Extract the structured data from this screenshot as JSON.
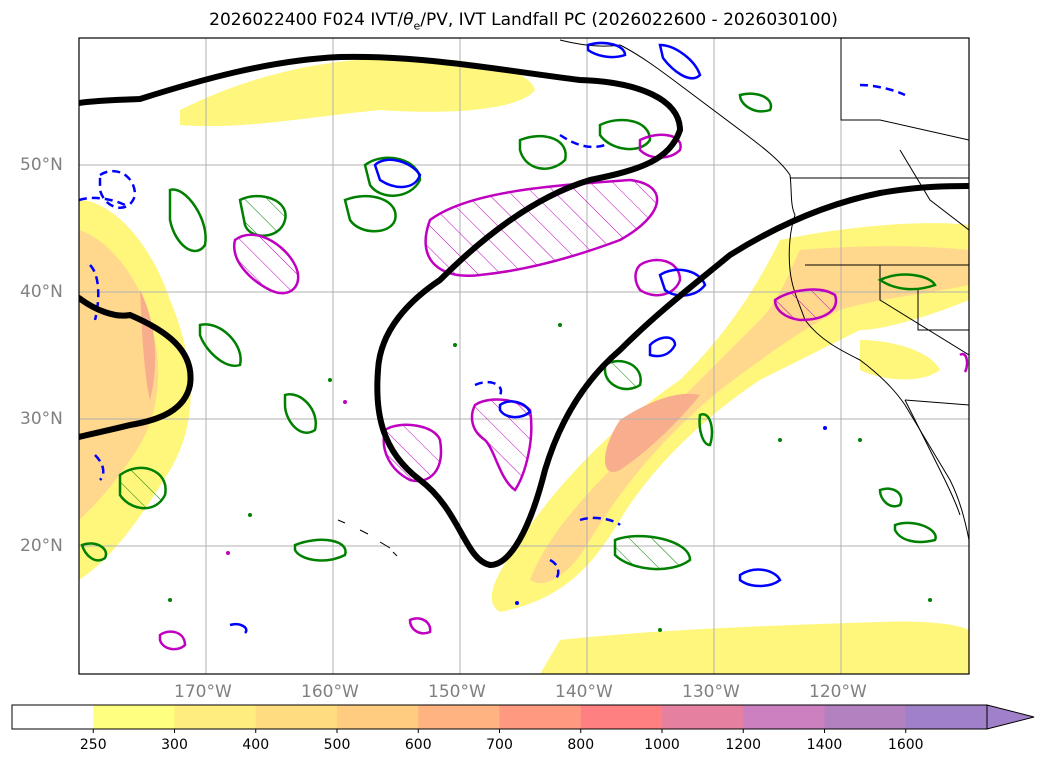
{
  "title": {
    "prefix": "2026022400 F024 IVT/",
    "theta": "θ",
    "theta_sub": "e",
    "suffix": "/PV, IVT Landfall PC (2026022600 - 2026030100)"
  },
  "axes": {
    "lat_labels": [
      "50°N",
      "40°N",
      "30°N",
      "20°N"
    ],
    "lon_labels": [
      "170°W",
      "160°W",
      "150°W",
      "140°W",
      "130°W",
      "120°W"
    ]
  },
  "colorbar": {
    "ticks": [
      "250",
      "300",
      "400",
      "500",
      "600",
      "700",
      "800",
      "1000",
      "1200",
      "1400",
      "1600"
    ],
    "colors": [
      "#ffffff",
      "#ffff80",
      "#ffed80",
      "#ffdc80",
      "#ffcc80",
      "#ffb380",
      "#ff9a80",
      "#ff8080",
      "#e680a0",
      "#cc80c0",
      "#b380c0",
      "#a080c8"
    ]
  },
  "colors": {
    "ivt_fill_light": "#fff566",
    "ivt_fill_mid": "#ffd27a",
    "ivt_fill_dark": "#f7a07a",
    "pc_contour": "#000000",
    "theta_contour_green": "#008000",
    "pv_contour_blue": "#0000ff",
    "pv_contour_magenta": "#c000c0",
    "grid": "#b0b0b0",
    "coast": "#000000"
  }
}
